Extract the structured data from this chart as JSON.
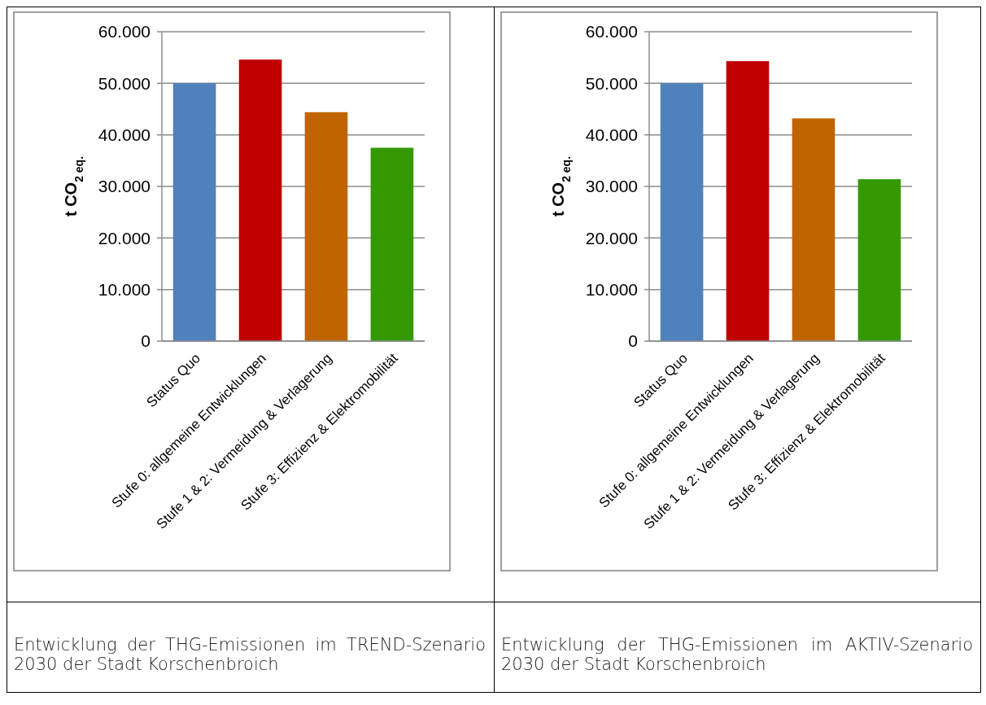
{
  "chart_data": [
    {
      "type": "bar",
      "ylabel": "t CO$_{2 eq.}$",
      "categories": [
        "Status Quo",
        "Stufe 0: allgemeine Entwicklungen",
        "Stufe 1 & 2: Vermeidung & Verlagerung",
        "Stufe 3: Effizienz & Elektromobilität"
      ],
      "values": [
        50000,
        54600,
        44400,
        37500
      ],
      "colors": [
        "#4f81bd",
        "#c00000",
        "#c06400",
        "#339900"
      ],
      "ylim": [
        0,
        60000
      ],
      "yticks": [
        {
          "value": 0,
          "label": "0"
        },
        {
          "value": 10000,
          "label": "10.000"
        },
        {
          "value": 20000,
          "label": "20.000"
        },
        {
          "value": 30000,
          "label": "30.000"
        },
        {
          "value": 40000,
          "label": "40.000"
        },
        {
          "value": 50000,
          "label": "50.000"
        },
        {
          "value": 60000,
          "label": "60.000"
        }
      ],
      "grid": "y",
      "annotations": [
        "Entwicklung der THG-Emissionen im TREND-Szenario 2030 der Stadt Korschenbroich"
      ]
    },
    {
      "type": "bar",
      "ylabel": "t CO$_{2 eq.}$",
      "categories": [
        "Status Quo",
        "Stufe 0: allgemeine Entwicklungen",
        "Stufe 1 & 2: Vermeidung & Verlagerung",
        "Stufe 3: Effizienz & Elektromobilität"
      ],
      "values": [
        50000,
        54300,
        43200,
        31400
      ],
      "colors": [
        "#4f81bd",
        "#c00000",
        "#c06400",
        "#339900"
      ],
      "ylim": [
        0,
        60000
      ],
      "yticks": [
        {
          "value": 0,
          "label": "0"
        },
        {
          "value": 10000,
          "label": "10.000"
        },
        {
          "value": 20000,
          "label": "20.000"
        },
        {
          "value": 30000,
          "label": "30.000"
        },
        {
          "value": 40000,
          "label": "40.000"
        },
        {
          "value": 50000,
          "label": "50.000"
        },
        {
          "value": 60000,
          "label": "60.000"
        }
      ],
      "grid": "y",
      "annotations": [
        "Entwicklung der THG-Emissionen im AKTIV-Szenario 2030 der Stadt Korschenbroich"
      ]
    }
  ]
}
